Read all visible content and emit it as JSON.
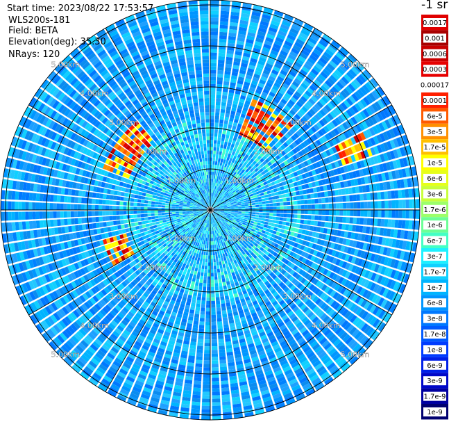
{
  "info": {
    "start_time": "Start time: 2023/08/22 17:53:57",
    "lidar": "WLS200s-181",
    "field": "Field: BETA",
    "elevation": "Elevation(deg): 35.30",
    "nrays": "NRays: 120"
  },
  "colorbar": {
    "unit": "-1 sr",
    "labels": [
      "0.0017",
      "0.001",
      "0.0006",
      "0.0003",
      "0.00017",
      "0.0001",
      "6e-5",
      "3e-5",
      "1.7e-5",
      "1e-5",
      "6e-6",
      "3e-6",
      "1.7e-6",
      "1e-6",
      "6e-7",
      "3e-7",
      "1.7e-7",
      "1e-7",
      "6e-8",
      "3e-8",
      "1.7e-8",
      "1e-8",
      "6e-9",
      "3e-9",
      "1.7e-9",
      "1e-9"
    ],
    "colors": [
      "#e00000",
      "#a80000",
      "#c80000",
      "#e60000",
      "#ffffff",
      "#ff2000",
      "#ff5a00",
      "#ff9000",
      "#ffc000",
      "#ffff00",
      "#e6ff1a",
      "#c8ff3c",
      "#9cff6a",
      "#6cff96",
      "#44ffc4",
      "#1ef0ff",
      "#10d0ff",
      "#00b4ff",
      "#0096ff",
      "#0078ff",
      "#005aff",
      "#003cff",
      "#0020e8",
      "#0008c8",
      "#0000a0",
      "#000070"
    ]
  },
  "chart_data": {
    "type": "heatmap",
    "projection": "polar-ppi",
    "field": "BETA",
    "elevation_deg": 35.3,
    "nrays": 120,
    "range_rings_km": [
      1.0,
      2.0,
      3.0,
      4.0,
      5.0
    ],
    "ring_labels": [
      "1.00km",
      "2.00km",
      "3.00km",
      "4.00km",
      "5.00km"
    ],
    "azimuth_lines_deg": [
      0,
      30,
      60,
      90,
      120,
      150,
      180,
      210,
      240,
      270,
      300,
      330
    ],
    "background_level": "1e-7 to 1e-8",
    "hot_regions": [
      {
        "az_from_deg": 20,
        "az_to_deg": 45,
        "range_from_km": 2.0,
        "range_to_km": 2.9,
        "level": "1e-5 to 0.0006"
      },
      {
        "az_from_deg": 63,
        "az_to_deg": 72,
        "range_from_km": 3.4,
        "range_to_km": 4.2,
        "level": "1e-5 to 1.7e-5"
      },
      {
        "az_from_deg": 290,
        "az_to_deg": 322,
        "range_from_km": 2.1,
        "range_to_km": 2.8,
        "level": "3e-5 to 0.0003"
      },
      {
        "az_from_deg": 240,
        "az_to_deg": 255,
        "range_from_km": 2.1,
        "range_to_km": 2.7,
        "level": "3e-5 to 0.0003"
      }
    ]
  }
}
